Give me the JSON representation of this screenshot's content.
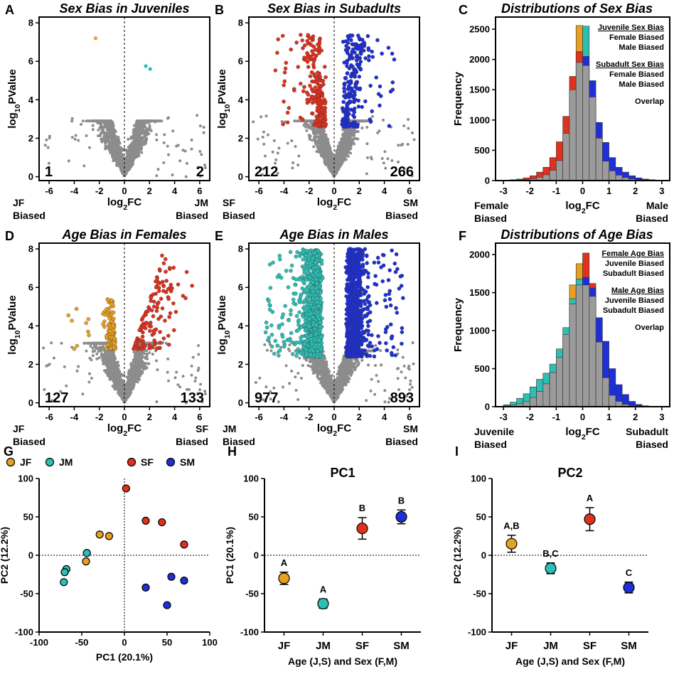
{
  "colors": {
    "jf": "#E8A021",
    "jm": "#2DBFB4",
    "sf": "#E0301E",
    "sm": "#1E2FD8",
    "grey": "#8C8C8C",
    "bar_grey": "#9B9B9B"
  },
  "chart_data": [
    {
      "id": "A",
      "type": "scatter",
      "letter": "A",
      "title": "Sex Bias in Juveniles",
      "xlabel": "log₂FC",
      "ylabel": "log₁₀PValue",
      "xlim": [
        -6.8,
        6.8
      ],
      "ylim": [
        -0.2,
        8.3
      ],
      "xticks": [
        -6,
        -4,
        -2,
        0,
        2,
        4,
        6
      ],
      "yticks": [
        0,
        2,
        4,
        6,
        8
      ],
      "count_left": "1",
      "count_right": "2",
      "bias_left": [
        "JF",
        "Biased"
      ],
      "bias_right": [
        "JM",
        "Biased"
      ],
      "left_color": "jf",
      "right_color": "jm",
      "spread": 1.8,
      "cloud": 2.6,
      "left_points": [
        [
          -2.3,
          7.2
        ]
      ],
      "right_points": [
        [
          1.7,
          5.75
        ],
        [
          2.05,
          5.6
        ]
      ]
    },
    {
      "id": "B",
      "type": "scatter",
      "letter": "B",
      "title": "Sex Bias in Subadults",
      "xlabel": "log₂FC",
      "ylabel": "log₁₀PValue",
      "xlim": [
        -6.8,
        6.8
      ],
      "ylim": [
        -0.2,
        8.3
      ],
      "xticks": [
        -6,
        -4,
        -2,
        0,
        2,
        4,
        6
      ],
      "yticks": [
        0,
        2,
        4,
        6,
        8
      ],
      "count_left": "212",
      "count_right": "266",
      "bias_left": [
        "SF",
        "Biased"
      ],
      "bias_right": [
        "SM",
        "Biased"
      ],
      "left_color": "sf",
      "right_color": "sm",
      "spread": 1.7,
      "cloud": 2.6
    },
    {
      "id": "C",
      "type": "bar",
      "letter": "C",
      "title": "Distributions of Sex Bias",
      "xlabel": "log₂FC",
      "ylabel": "Frequency",
      "xlim": [
        -3.3,
        3.3
      ],
      "ylim": [
        0,
        2700
      ],
      "xticks": [
        -3,
        -2,
        -1,
        0,
        1,
        2,
        3
      ],
      "yticks": [
        0,
        500,
        1000,
        1500,
        2000,
        2500
      ],
      "bin_width": 0.25,
      "bin_centers": [
        -2.875,
        -2.625,
        -2.375,
        -2.125,
        -1.875,
        -1.625,
        -1.375,
        -1.125,
        -0.875,
        -0.625,
        -0.375,
        -0.125,
        0.125,
        0.375,
        0.625,
        0.875,
        1.125,
        1.375,
        1.625,
        1.875,
        2.125,
        2.375,
        2.625,
        2.875
      ],
      "overlap": [
        5,
        8,
        12,
        18,
        30,
        55,
        95,
        170,
        330,
        780,
        1500,
        1950,
        1900,
        1380,
        700,
        320,
        160,
        90,
        50,
        28,
        15,
        8,
        5,
        3
      ],
      "series": [
        {
          "name": "Female Biased (Juvenile)",
          "color": "jf",
          "values": [
            5,
            8,
            12,
            18,
            30,
            55,
            95,
            170,
            330,
            780,
            1500,
            2560,
            1900,
            1380,
            700,
            320,
            160,
            90,
            50,
            28,
            15,
            8,
            5,
            3
          ]
        },
        {
          "name": "Male Biased (Juvenile)",
          "color": "jm",
          "values": [
            5,
            8,
            12,
            18,
            30,
            55,
            95,
            170,
            330,
            780,
            1500,
            1950,
            2550,
            1380,
            700,
            320,
            160,
            90,
            50,
            28,
            15,
            8,
            5,
            3
          ]
        },
        {
          "name": "Female Biased (Subadult)",
          "color": "sf",
          "values": [
            8,
            15,
            25,
            45,
            80,
            140,
            220,
            380,
            640,
            1060,
            1720,
            2130,
            1900,
            1380,
            700,
            320,
            160,
            90,
            50,
            28,
            15,
            8,
            5,
            3
          ]
        },
        {
          "name": "Male Biased (Subadult)",
          "color": "sm",
          "values": [
            5,
            8,
            12,
            18,
            30,
            55,
            95,
            170,
            330,
            780,
            1500,
            1950,
            2050,
            1650,
            960,
            630,
            380,
            220,
            140,
            80,
            45,
            25,
            15,
            8
          ]
        }
      ],
      "legend": [
        {
          "text": "Juvenile Sex Bias",
          "kind": "header"
        },
        {
          "text": "Female Biased",
          "color": "jf"
        },
        {
          "text": "Male Biased",
          "color": "jm"
        },
        {
          "text": "Subadult Sex Bias",
          "kind": "header"
        },
        {
          "text": "Female Biased",
          "color": "sf"
        },
        {
          "text": "Male Biased",
          "color": "sm"
        },
        {
          "text": "Overlap",
          "color": "grey"
        }
      ],
      "bias_left": [
        "Female",
        "Biased"
      ],
      "bias_right": [
        "Male",
        "Biased"
      ]
    },
    {
      "id": "D",
      "type": "scatter",
      "letter": "D",
      "title": "Age Bias in Females",
      "xlabel": "log₂FC",
      "ylabel": "log₁₀PValue",
      "xlim": [
        -6.8,
        6.8
      ],
      "ylim": [
        -0.2,
        8.3
      ],
      "xticks": [
        -6,
        -4,
        -2,
        0,
        2,
        4,
        6
      ],
      "yticks": [
        0,
        2,
        4,
        6,
        8
      ],
      "count_left": "127",
      "count_right": "133",
      "bias_left": [
        "JF",
        "Biased"
      ],
      "bias_right": [
        "SF",
        "Biased"
      ],
      "left_color": "jf",
      "right_color": "sf",
      "spread": 1.9,
      "cloud": 2.8
    },
    {
      "id": "E",
      "type": "scatter",
      "letter": "E",
      "title": "Age Bias in Males",
      "xlabel": "log₂FC",
      "ylabel": "log₁₀PValue",
      "xlim": [
        -6.8,
        6.8
      ],
      "ylim": [
        -0.2,
        8.3
      ],
      "xticks": [
        -6,
        -4,
        -2,
        0,
        2,
        4,
        6
      ],
      "yticks": [
        0,
        2,
        4,
        6,
        8
      ],
      "count_left": "977",
      "count_right": "893",
      "bias_left": [
        "JM",
        "Biased"
      ],
      "bias_right": [
        "SM",
        "Biased"
      ],
      "left_color": "jm",
      "right_color": "sm",
      "spread": 1.9,
      "cloud": 2.4
    },
    {
      "id": "F",
      "type": "bar",
      "letter": "F",
      "title": "Distributions of Age Bias",
      "xlabel": "log₂FC",
      "ylabel": "Frequency",
      "xlim": [
        -3.3,
        3.3
      ],
      "ylim": [
        0,
        2150
      ],
      "xticks": [
        -3,
        -2,
        -1,
        0,
        1,
        2,
        3
      ],
      "yticks": [
        0,
        500,
        1000,
        1500,
        2000
      ],
      "bin_width": 0.25,
      "bin_centers": [
        -2.875,
        -2.625,
        -2.375,
        -2.125,
        -1.875,
        -1.625,
        -1.375,
        -1.125,
        -0.875,
        -0.625,
        -0.375,
        -0.125,
        0.125,
        0.375,
        0.625,
        0.875,
        1.125,
        1.375,
        1.625,
        1.875,
        2.125,
        2.375,
        2.625,
        2.875
      ],
      "overlap": [
        10,
        20,
        40,
        70,
        120,
        200,
        300,
        450,
        650,
        950,
        1350,
        1600,
        1600,
        1450,
        850,
        380,
        150,
        70,
        30,
        15,
        8,
        5,
        3,
        2
      ],
      "series": [
        {
          "name": "Juvenile Biased (Female)",
          "color": "jf",
          "values": [
            10,
            20,
            40,
            70,
            120,
            200,
            300,
            450,
            650,
            950,
            1600,
            1880,
            1600,
            1450,
            850,
            380,
            150,
            70,
            30,
            15,
            8,
            5,
            3,
            2
          ]
        },
        {
          "name": "Subadult Biased (Female)",
          "color": "sf",
          "values": [
            10,
            20,
            40,
            70,
            120,
            200,
            300,
            450,
            650,
            950,
            1350,
            1600,
            2020,
            1620,
            850,
            380,
            150,
            70,
            30,
            15,
            8,
            5,
            3,
            2
          ]
        },
        {
          "name": "Juvenile Biased (Male)",
          "color": "jm",
          "values": [
            25,
            60,
            110,
            170,
            260,
            360,
            440,
            560,
            760,
            1040,
            1420,
            1680,
            1600,
            1450,
            850,
            380,
            150,
            70,
            30,
            15,
            8,
            5,
            3,
            2
          ]
        },
        {
          "name": "Subadult Biased (Male)",
          "color": "sm",
          "values": [
            10,
            20,
            40,
            70,
            120,
            200,
            300,
            450,
            650,
            950,
            1350,
            1600,
            1700,
            1560,
            1170,
            860,
            500,
            290,
            160,
            70,
            30,
            12,
            6,
            3
          ]
        }
      ],
      "legend": [
        {
          "text": "Female Age Bias",
          "kind": "header"
        },
        {
          "text": "Juvenile Biased",
          "color": "jf"
        },
        {
          "text": "Subadult Biased",
          "color": "sf"
        },
        {
          "text": "Male Age Bias",
          "kind": "header"
        },
        {
          "text": "Juvenile Biased",
          "color": "jm"
        },
        {
          "text": "Subadult Biased",
          "color": "sm"
        },
        {
          "text": "Overlap",
          "color": "grey"
        }
      ],
      "bias_left": [
        "Juvenile",
        "Biased"
      ],
      "bias_right": [
        "Subadult",
        "Biased"
      ]
    },
    {
      "id": "G",
      "type": "scatter",
      "letter": "G",
      "xlabel": "PC1 (20.1%)",
      "ylabel": "PC2 (12.2%)",
      "xlim": [
        -100,
        100
      ],
      "ylim": [
        -100,
        100
      ],
      "xticks": [
        -100,
        -50,
        0,
        50,
        100
      ],
      "yticks": [
        -100,
        -50,
        0,
        50,
        100
      ],
      "legend": [
        {
          "label": "JF",
          "color": "jf"
        },
        {
          "label": "JM",
          "color": "jm"
        },
        {
          "label": "SF",
          "color": "sf"
        },
        {
          "label": "SM",
          "color": "sm"
        }
      ],
      "points": {
        "jf": [
          [
            -29,
            27
          ],
          [
            -18,
            25
          ],
          [
            -45,
            -8
          ]
        ],
        "jm": [
          [
            -44,
            3
          ],
          [
            -68,
            -18
          ],
          [
            -70,
            -22
          ],
          [
            -71,
            -35
          ]
        ],
        "sf": [
          [
            2,
            87
          ],
          [
            25,
            45
          ],
          [
            44,
            43
          ],
          [
            70,
            14
          ]
        ],
        "sm": [
          [
            55,
            -28
          ],
          [
            70,
            -33
          ],
          [
            25,
            -42
          ],
          [
            50,
            -65
          ]
        ]
      }
    },
    {
      "id": "H",
      "type": "scatter",
      "letter": "H",
      "title": "PC1",
      "xlabel": "Age (J,S) and Sex (F,M)",
      "ylabel": "PC1 (20.1%)",
      "ylim": [
        -100,
        100
      ],
      "yticks": [
        -100,
        -50,
        0,
        50,
        100
      ],
      "categories": [
        "JF",
        "JM",
        "SF",
        "SM"
      ],
      "colors": [
        "jf",
        "jm",
        "sf",
        "sm"
      ],
      "means": [
        -30,
        -63,
        35,
        50
      ],
      "errors": [
        8,
        6,
        14,
        9
      ],
      "letters": [
        "A",
        "A",
        "B",
        "B"
      ]
    },
    {
      "id": "I",
      "type": "scatter",
      "letter": "I",
      "title": "PC2",
      "xlabel": "Age (J,S) and Sex (F,M)",
      "ylabel": "PC2 (12.2%)",
      "ylim": [
        -100,
        100
      ],
      "yticks": [
        -100,
        -50,
        0,
        50,
        100
      ],
      "categories": [
        "JF",
        "JM",
        "SF",
        "SM"
      ],
      "colors": [
        "jf",
        "jm",
        "sf",
        "sm"
      ],
      "means": [
        15,
        -17,
        47,
        -42
      ],
      "errors": [
        11,
        7,
        15,
        7
      ],
      "letters": [
        "A,B",
        "B,C",
        "A",
        "C"
      ]
    }
  ]
}
